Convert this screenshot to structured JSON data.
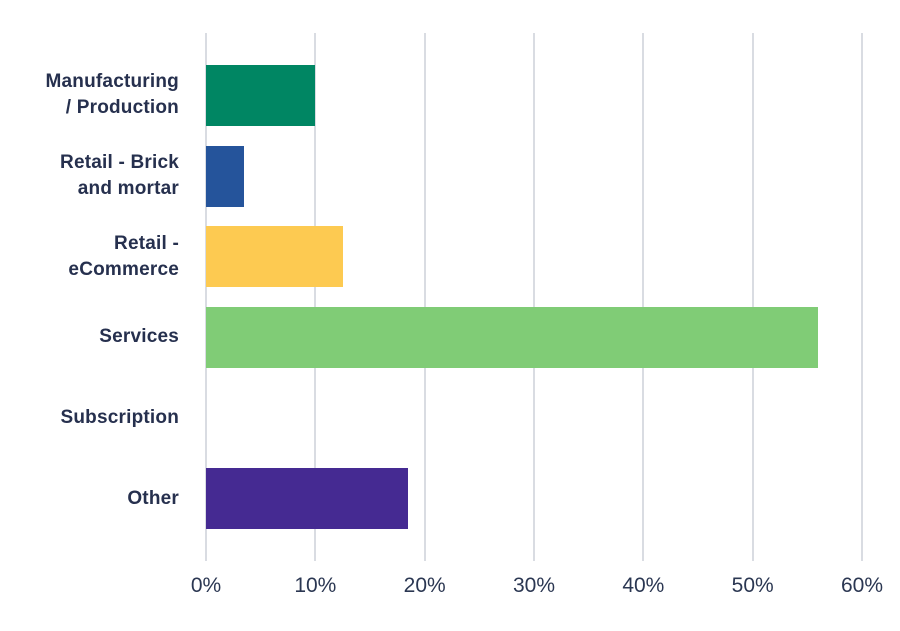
{
  "chart_data": {
    "type": "bar",
    "orientation": "horizontal",
    "title": "",
    "xlabel": "",
    "ylabel": "",
    "categories": [
      "Manufacturing / Production",
      "Retail - Brick and mortar",
      "Retail - eCommerce",
      "Services",
      "Subscription",
      "Other"
    ],
    "category_label_lines": [
      [
        "Manufacturing",
        "/ Production"
      ],
      [
        "Retail - Brick",
        "and mortar"
      ],
      [
        "Retail -",
        "eCommerce"
      ],
      [
        "Services"
      ],
      [
        "Subscription"
      ],
      [
        "Other"
      ]
    ],
    "values": [
      10,
      3.5,
      12.5,
      56,
      0,
      18.5
    ],
    "unit": "%",
    "bar_colors": [
      "#008663",
      "#25549b",
      "#fdca51",
      "#80cc76",
      null,
      "#452a92"
    ],
    "x_ticks": [
      "0%",
      "10%",
      "20%",
      "30%",
      "40%",
      "50%",
      "60%"
    ],
    "x_tick_values": [
      0,
      10,
      20,
      30,
      40,
      50,
      60
    ],
    "xlim": [
      0,
      60
    ],
    "grid": true,
    "legend": false,
    "colors": {
      "label_text": "#26304e",
      "tick_text": "#2b3752",
      "gridline": "#d9dce2",
      "background": "#ffffff"
    }
  }
}
